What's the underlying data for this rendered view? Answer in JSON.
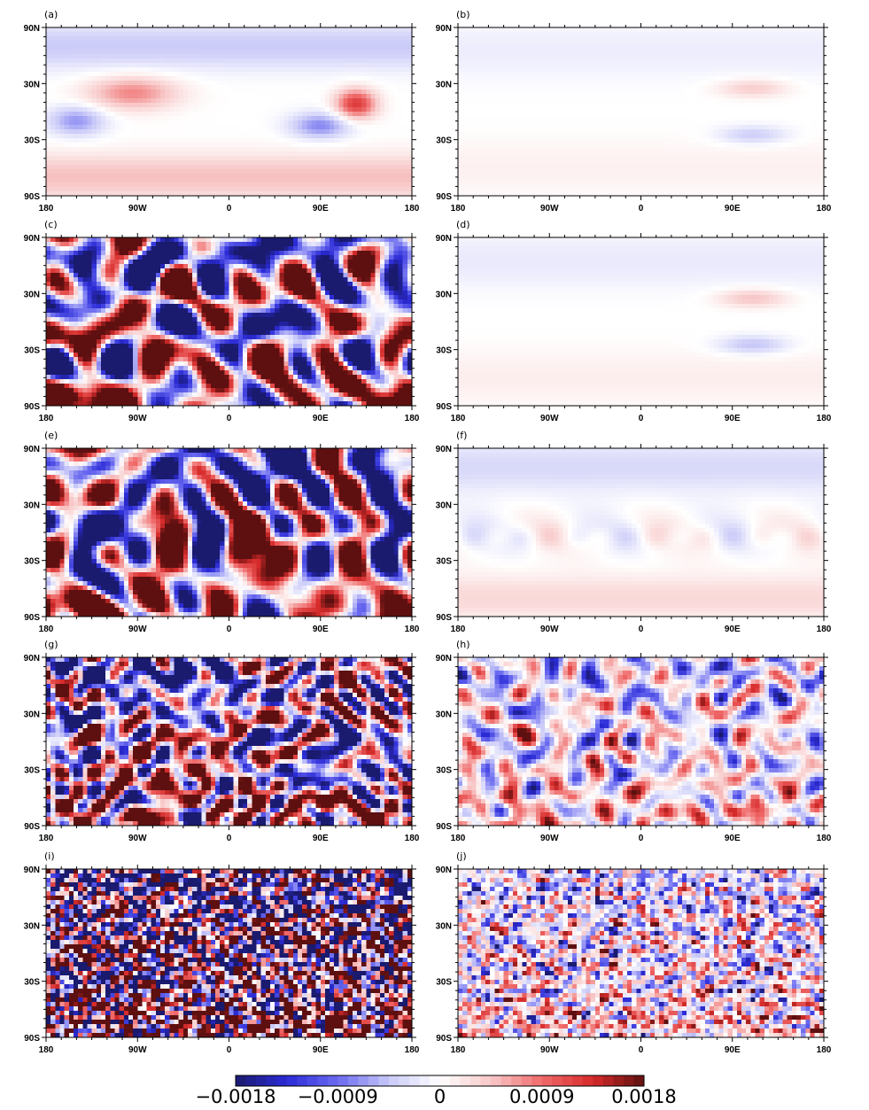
{
  "chart_data": {
    "type": "heatmap",
    "title": "",
    "projection": "global lat-lon map, cylindrical equidistant",
    "x_ticks": [
      "180",
      "90W",
      "0",
      "90E",
      "180"
    ],
    "y_ticks": [
      "90N",
      "30N",
      "30S",
      "90S"
    ],
    "colormap": {
      "name": "blue-white-red diverging",
      "range": [
        -0.0018,
        0.0018
      ],
      "labels": [
        "−0.0018",
        "−0.0009",
        "0",
        "0.0009",
        "0.0018"
      ],
      "stops": [
        "#1a1a6e",
        "#2b2bd6",
        "#6a6af0",
        "#c8c8f8",
        "#ffffff",
        "#f8c8c8",
        "#f06a6a",
        "#d62b2b",
        "#5e1010"
      ]
    },
    "panels": [
      {
        "id": "a",
        "label": "(a)",
        "pattern": "smooth",
        "amplitude": 0.0014
      },
      {
        "id": "b",
        "label": "(b)",
        "pattern": "zonal",
        "amplitude": 0.0006
      },
      {
        "id": "c",
        "label": "(c)",
        "pattern": "sheared",
        "amplitude": 0.0022
      },
      {
        "id": "d",
        "label": "(d)",
        "pattern": "zonal",
        "amplitude": 0.0007
      },
      {
        "id": "e",
        "label": "(e)",
        "pattern": "filamented",
        "amplitude": 0.0024
      },
      {
        "id": "f",
        "label": "(f)",
        "pattern": "zonal-wavy",
        "amplitude": 0.0007
      },
      {
        "id": "g",
        "label": "(g)",
        "pattern": "turbulent",
        "amplitude": 0.0022
      },
      {
        "id": "h",
        "label": "(h)",
        "pattern": "turbulent-weak",
        "amplitude": 0.0009
      },
      {
        "id": "i",
        "label": "(i)",
        "pattern": "noise",
        "amplitude": 0.0028
      },
      {
        "id": "j",
        "label": "(j)",
        "pattern": "noise-weak",
        "amplitude": 0.001
      }
    ]
  }
}
